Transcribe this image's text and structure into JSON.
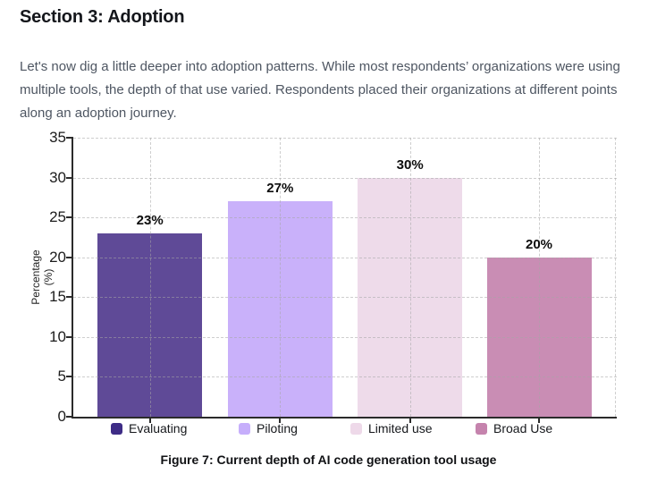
{
  "header": {
    "title": "Section 3: Adoption",
    "paragraph": "Let's now dig a little deeper into adoption patterns. While most respondents’ organizations were using multiple tools, the depth of that use varied. Respondents placed their organizations at different points along an adoption journey."
  },
  "chart_data": {
    "type": "bar",
    "title": "",
    "categories": [
      "Evaluating",
      "Piloting",
      "Limited use",
      "Broad Use"
    ],
    "values": [
      23,
      27,
      30,
      20
    ],
    "value_labels": [
      "23%",
      "27%",
      "30%",
      "20%"
    ],
    "bar_colors": [
      "#5f4a97",
      "#c9b1fa",
      "#eedbea",
      "#c98db4"
    ],
    "legend_colors": [
      "#3e2c86",
      "#c6aefb",
      "#eed9e9",
      "#c583ad"
    ],
    "xlabel": "",
    "ylabel": "Percentage (%)",
    "ylabel_lines": [
      "Percentage",
      "(%)"
    ],
    "ylim": [
      0,
      35
    ],
    "ytick_step": 5,
    "yticks": [
      0,
      5,
      10,
      15,
      20,
      25,
      30,
      35
    ],
    "grid": "dashed",
    "legend_position": "bottom"
  },
  "caption": "Figure 7: Current depth of AI code generation tool usage",
  "colors": {
    "axis": "#2b2b2b",
    "gridline": "#a5a5a5",
    "title_text": "#14161b",
    "body_text": "#4e5662"
  }
}
